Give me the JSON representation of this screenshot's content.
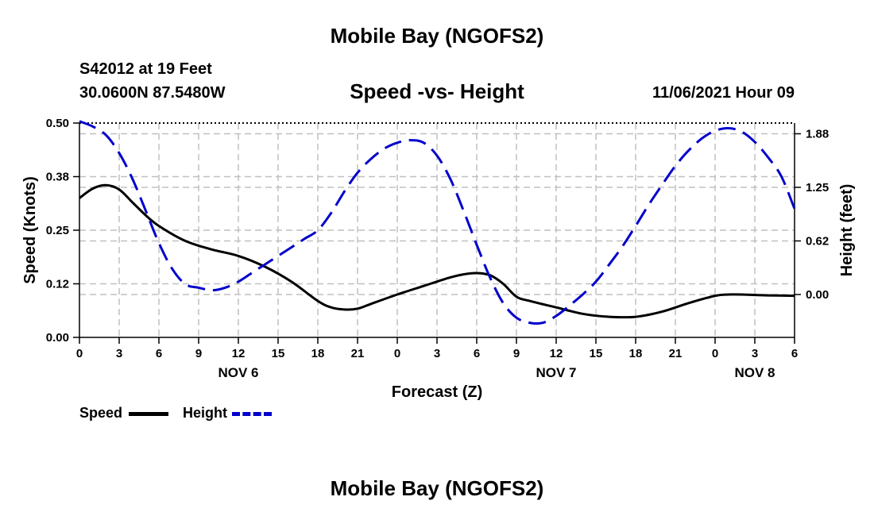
{
  "header": {
    "title": "Mobile Bay (NGOFS2)",
    "station": "S42012 at 19 Feet",
    "coords": "30.0600N  87.5480W",
    "subtitle": "Speed -vs- Height",
    "datetime": "11/06/2021 Hour 09"
  },
  "footer": {
    "title": "Mobile Bay (NGOFS2)"
  },
  "colors": {
    "speed": "#000000",
    "height": "#0000cc",
    "grid": "#c0c0c0"
  },
  "chart_data": {
    "type": "line",
    "title": "Speed -vs- Height",
    "xlabel": "Forecast (Z)",
    "ylabel": "Speed (Knots)",
    "y2label": "Height (feet)",
    "xlim": [
      0,
      54
    ],
    "ylim": [
      0,
      0.5
    ],
    "y2lim": [
      -0.5,
      2.0
    ],
    "x_ticks": [
      0,
      3,
      6,
      9,
      12,
      15,
      18,
      21,
      24,
      27,
      30,
      33,
      36,
      39,
      42,
      45,
      48,
      51,
      54
    ],
    "x_tick_labels": [
      "0",
      "3",
      "6",
      "9",
      "12",
      "15",
      "18",
      "21",
      "0",
      "3",
      "6",
      "9",
      "12",
      "15",
      "18",
      "21",
      "0",
      "3",
      "6"
    ],
    "day_labels": [
      {
        "x": 12,
        "label": "NOV 6"
      },
      {
        "x": 36,
        "label": "NOV 7"
      },
      {
        "x": 51,
        "label": "NOV 8"
      }
    ],
    "y_ticks": [
      0,
      0.125,
      0.25,
      0.375,
      0.5
    ],
    "y_tick_labels": [
      "0.00",
      "0.12",
      "0.25",
      "0.38",
      "0.50"
    ],
    "y2_ticks": [
      0,
      0.625,
      1.25,
      1.875
    ],
    "y2_tick_labels": [
      "0.00",
      "0.62",
      "1.25",
      "1.88"
    ],
    "grid": true,
    "legend_position": "bottom-left",
    "series": [
      {
        "name": "Speed",
        "axis": "left",
        "style": "solid",
        "x": [
          0,
          1,
          2,
          3,
          4,
          5,
          6,
          8,
          10,
          12,
          14,
          16,
          18,
          19,
          20,
          21,
          22,
          24,
          26,
          28,
          29,
          30,
          31,
          32,
          33,
          34,
          36,
          38,
          40,
          42,
          44,
          46,
          48,
          49,
          50,
          52,
          54
        ],
        "values": [
          0.325,
          0.347,
          0.355,
          0.345,
          0.315,
          0.285,
          0.26,
          0.225,
          0.205,
          0.19,
          0.165,
          0.13,
          0.085,
          0.07,
          0.065,
          0.067,
          0.078,
          0.1,
          0.12,
          0.14,
          0.147,
          0.15,
          0.145,
          0.125,
          0.095,
          0.085,
          0.07,
          0.055,
          0.048,
          0.048,
          0.06,
          0.08,
          0.097,
          0.1,
          0.1,
          0.098,
          0.097
        ]
      },
      {
        "name": "Height",
        "axis": "right",
        "style": "dashed",
        "x": [
          0,
          1,
          2,
          3,
          4,
          5,
          6,
          7,
          8,
          9,
          10,
          11,
          12,
          13,
          14,
          15,
          16,
          17,
          18,
          19,
          20,
          21,
          22,
          23,
          24,
          25,
          26,
          27,
          28,
          29,
          30,
          31,
          32,
          33,
          34,
          35,
          36,
          37,
          38,
          39,
          40,
          41,
          42,
          43,
          44,
          45,
          46,
          47,
          48,
          49,
          50,
          51,
          52,
          53,
          54
        ],
        "values": [
          2.02,
          1.96,
          1.86,
          1.65,
          1.35,
          0.98,
          0.6,
          0.3,
          0.12,
          0.08,
          0.05,
          0.08,
          0.15,
          0.25,
          0.35,
          0.45,
          0.55,
          0.65,
          0.75,
          0.95,
          1.2,
          1.42,
          1.58,
          1.7,
          1.77,
          1.8,
          1.77,
          1.62,
          1.35,
          0.98,
          0.58,
          0.2,
          -0.1,
          -0.27,
          -0.33,
          -0.33,
          -0.25,
          -0.13,
          0.0,
          0.15,
          0.35,
          0.56,
          0.8,
          1.05,
          1.28,
          1.5,
          1.68,
          1.82,
          1.91,
          1.94,
          1.9,
          1.78,
          1.6,
          1.38,
          1.0
        ]
      }
    ]
  },
  "legend": {
    "speed_label": "Speed",
    "height_label": "Height"
  }
}
